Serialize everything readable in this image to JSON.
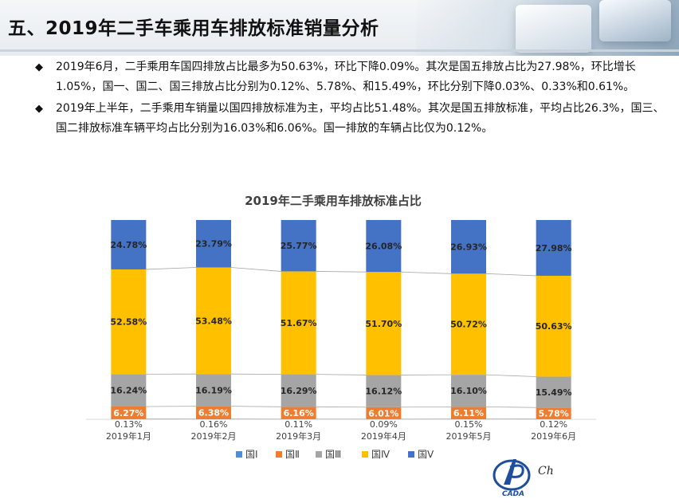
{
  "page": {
    "title": "五、2019年二手车乘用车排放标准销量分析",
    "bullets": [
      "2019年6月，二手乘用车国四排放占比最多为50.63%，环比下降0.09%。其次是国五排放占比为27.98%，环比增长1.05%，国一、国二、国三排放占比分别为0.12%、5.78%、和15.49%，环比分别下降0.03%、0.33%和0.61%。",
      "2019年上半年，二手乘用车销量以国四排放标准为主，平均占比51.48%。其次是国五排放标准，平均占比26.3%，国三、国二排放标准车辆平均占比分别为16.03%和6.06%。国一排放的车辆占比仅为0.12%。"
    ],
    "bullet_icon": "diamond-bullet-icon",
    "logo_text": "CADA",
    "logo_text2": "Ch"
  },
  "chart_data": {
    "type": "bar",
    "stacked": true,
    "percent_stacked": true,
    "title": "2019年二手乘用车排放标准占比",
    "categories": [
      "2019年1月",
      "2019年2月",
      "2019年3月",
      "2019年4月",
      "2019年5月",
      "2019年6月"
    ],
    "series": [
      {
        "name": "国Ⅰ",
        "color": "#4e8fd0",
        "values": [
          0.13,
          0.16,
          0.11,
          0.09,
          0.15,
          0.12
        ],
        "labels": [
          "0.13%",
          "0.16%",
          "0.11%",
          "0.09%",
          "0.15%",
          "0.12%"
        ]
      },
      {
        "name": "国Ⅱ",
        "color": "#ed7d31",
        "values": [
          6.27,
          6.38,
          6.16,
          6.01,
          6.11,
          5.78
        ],
        "labels": [
          "6.27%",
          "6.38%",
          "6.16%",
          "6.01%",
          "6.11%",
          "5.78%"
        ]
      },
      {
        "name": "国Ⅲ",
        "color": "#a5a5a5",
        "values": [
          16.24,
          16.19,
          16.29,
          16.12,
          16.1,
          15.49
        ],
        "labels": [
          "16.24%",
          "16.19%",
          "16.29%",
          "16.12%",
          "16.10%",
          "15.49%"
        ]
      },
      {
        "name": "国Ⅳ",
        "color": "#ffc000",
        "values": [
          52.58,
          53.48,
          51.67,
          51.7,
          50.72,
          50.63
        ],
        "labels": [
          "52.58%",
          "53.48%",
          "51.67%",
          "51.70%",
          "50.72%",
          "50.63%"
        ]
      },
      {
        "name": "国Ⅴ",
        "color": "#4472c4",
        "values": [
          24.78,
          23.79,
          25.77,
          26.08,
          26.93,
          27.98
        ],
        "labels": [
          "24.78%",
          "23.79%",
          "25.77%",
          "26.08%",
          "26.93%",
          "27.98%"
        ]
      }
    ],
    "ylim": [
      0,
      100
    ],
    "legend_position": "bottom",
    "grid": false,
    "series_lines": true
  }
}
